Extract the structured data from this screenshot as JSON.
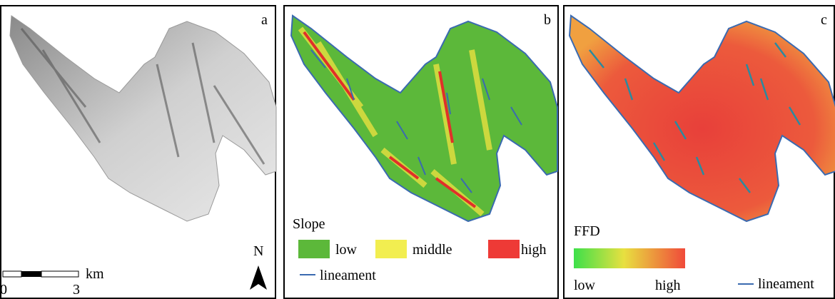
{
  "panels": [
    {
      "label": "a",
      "scale_bar": {
        "start": "0",
        "end": "3",
        "unit": "km"
      },
      "north": "N"
    },
    {
      "label": "b",
      "legend": {
        "title": "Slope",
        "items": [
          "low",
          "middle",
          "high"
        ],
        "line": "lineament"
      }
    },
    {
      "label": "c",
      "legend": {
        "title": "FFD",
        "low": "low",
        "high": "high",
        "line": "lineament"
      }
    }
  ]
}
